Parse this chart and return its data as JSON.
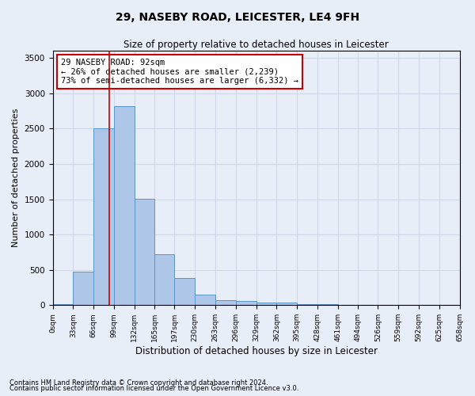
{
  "title1": "29, NASEBY ROAD, LEICESTER, LE4 9FH",
  "title2": "Size of property relative to detached houses in Leicester",
  "xlabel": "Distribution of detached houses by size in Leicester",
  "ylabel": "Number of detached properties",
  "bin_edges": [
    0,
    33,
    66,
    99,
    132,
    165,
    197,
    230,
    263,
    296,
    329,
    362,
    395,
    428,
    461,
    494,
    526,
    559,
    592,
    625,
    658
  ],
  "bar_heights": [
    20,
    470,
    2500,
    2820,
    1510,
    720,
    390,
    150,
    75,
    55,
    35,
    35,
    20,
    10,
    5,
    5,
    5,
    5,
    5,
    5
  ],
  "bar_color": "#aec6e8",
  "bar_edge_color": "#5a96c8",
  "vline_x": 92,
  "vline_color": "#cc0000",
  "annotation_title": "29 NASEBY ROAD: 92sqm",
  "annotation_line2": "← 26% of detached houses are smaller (2,239)",
  "annotation_line3": "73% of semi-detached houses are larger (6,332) →",
  "annotation_box_color": "#ffffff",
  "annotation_box_edge_color": "#cc0000",
  "ylim": [
    0,
    3600
  ],
  "yticks": [
    0,
    500,
    1000,
    1500,
    2000,
    2500,
    3000,
    3500
  ],
  "grid_color": "#d0d8e8",
  "bg_color": "#e8eef8",
  "footnote1": "Contains HM Land Registry data © Crown copyright and database right 2024.",
  "footnote2": "Contains public sector information licensed under the Open Government Licence v3.0."
}
